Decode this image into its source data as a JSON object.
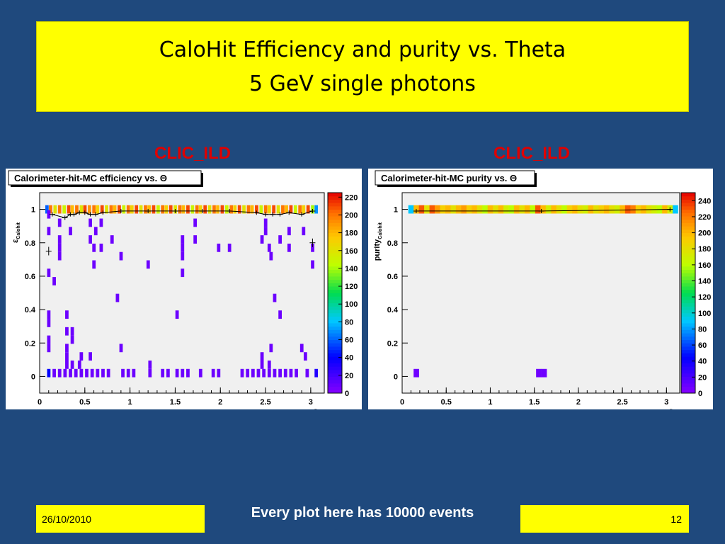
{
  "slide": {
    "title_line1": "CaloHit Efficiency and purity vs. Theta",
    "title_line2": "5 GeV single photons",
    "footer_date": "26/10/2010",
    "footer_text": "Every plot here has 10000 events",
    "page_number": "12"
  },
  "panels": {
    "left_label": "CLIC_ILD",
    "right_label": "CLIC_ILD"
  },
  "chart_data": [
    {
      "type": "heatmap",
      "title": "Calorimeter-hit-MC efficiency vs. Θ",
      "xlabel": "Θ",
      "ylabel": "εCalohit",
      "ylabel_main": "ε",
      "ylabel_sub": "Calohit",
      "xlim": [
        0,
        3.15
      ],
      "ylim": [
        -0.1,
        1.1
      ],
      "xticks": [
        "0",
        "0.5",
        "1",
        "1.5",
        "2",
        "2.5",
        "3"
      ],
      "yticks": [
        "0",
        "0.2",
        "0.4",
        "0.6",
        "0.8",
        "1"
      ],
      "colorbar_ticks": [
        "0",
        "20",
        "40",
        "60",
        "80",
        "100",
        "120",
        "140",
        "160",
        "180",
        "200",
        "220"
      ],
      "colorbar_max": 225,
      "bin_width_x": 0.035,
      "bin_height_y": 0.05,
      "cells": [
        [
          0.08,
          1,
          60
        ],
        [
          0.12,
          1,
          200
        ],
        [
          0.17,
          1,
          160
        ],
        [
          0.22,
          1,
          200
        ],
        [
          0.27,
          1,
          150
        ],
        [
          0.32,
          1,
          210
        ],
        [
          0.36,
          1,
          180
        ],
        [
          0.41,
          1,
          200
        ],
        [
          0.46,
          1,
          160
        ],
        [
          0.5,
          1,
          210
        ],
        [
          0.55,
          1,
          190
        ],
        [
          0.6,
          1,
          200
        ],
        [
          0.64,
          1,
          170
        ],
        [
          0.69,
          1,
          210
        ],
        [
          0.74,
          1,
          160
        ],
        [
          0.79,
          1,
          200
        ],
        [
          0.83,
          1,
          180
        ],
        [
          0.88,
          1,
          210
        ],
        [
          0.93,
          1,
          150
        ],
        [
          0.98,
          1,
          200
        ],
        [
          1.02,
          1,
          170
        ],
        [
          1.07,
          1,
          210
        ],
        [
          1.12,
          1,
          160
        ],
        [
          1.17,
          1,
          200
        ],
        [
          1.21,
          1,
          180
        ],
        [
          1.26,
          1,
          210
        ],
        [
          1.31,
          1,
          150
        ],
        [
          1.36,
          1,
          200
        ],
        [
          1.4,
          1,
          170
        ],
        [
          1.45,
          1,
          210
        ],
        [
          1.5,
          1,
          160
        ],
        [
          1.55,
          1,
          200
        ],
        [
          1.59,
          1,
          180
        ],
        [
          1.64,
          1,
          210
        ],
        [
          1.69,
          1,
          150
        ],
        [
          1.74,
          1,
          200
        ],
        [
          1.78,
          1,
          170
        ],
        [
          1.83,
          1,
          210
        ],
        [
          1.88,
          1,
          160
        ],
        [
          1.93,
          1,
          200
        ],
        [
          1.97,
          1,
          180
        ],
        [
          2.02,
          1,
          210
        ],
        [
          2.07,
          1,
          150
        ],
        [
          2.12,
          1,
          200
        ],
        [
          2.16,
          1,
          170
        ],
        [
          2.21,
          1,
          210
        ],
        [
          2.26,
          1,
          160
        ],
        [
          2.31,
          1,
          200
        ],
        [
          2.35,
          1,
          180
        ],
        [
          2.4,
          1,
          210
        ],
        [
          2.45,
          1,
          150
        ],
        [
          2.5,
          1,
          200
        ],
        [
          2.54,
          1,
          170
        ],
        [
          2.59,
          1,
          210
        ],
        [
          2.64,
          1,
          160
        ],
        [
          2.69,
          1,
          200
        ],
        [
          2.73,
          1,
          180
        ],
        [
          2.78,
          1,
          210
        ],
        [
          2.83,
          1,
          150
        ],
        [
          2.88,
          1,
          200
        ],
        [
          2.92,
          1,
          170
        ],
        [
          2.97,
          1,
          210
        ],
        [
          3.02,
          1,
          140
        ],
        [
          3.06,
          1,
          70
        ],
        [
          0.1,
          0.97,
          8
        ],
        [
          0.1,
          0.87,
          8
        ],
        [
          0.22,
          0.92,
          8
        ],
        [
          0.22,
          0.82,
          8
        ],
        [
          0.22,
          0.77,
          8
        ],
        [
          0.22,
          0.72,
          8
        ],
        [
          0.34,
          0.87,
          8
        ],
        [
          0.56,
          0.92,
          8
        ],
        [
          0.56,
          0.82,
          8
        ],
        [
          0.62,
          0.87,
          8
        ],
        [
          0.68,
          0.92,
          8
        ],
        [
          0.6,
          0.77,
          8
        ],
        [
          0.68,
          0.77,
          8
        ],
        [
          0.8,
          0.82,
          8
        ],
        [
          0.9,
          0.72,
          8
        ],
        [
          0.6,
          0.67,
          8
        ],
        [
          1.2,
          0.67,
          8
        ],
        [
          1.58,
          0.82,
          8
        ],
        [
          1.58,
          0.77,
          8
        ],
        [
          1.58,
          0.72,
          8
        ],
        [
          1.58,
          0.62,
          8
        ],
        [
          1.72,
          0.92,
          8
        ],
        [
          1.72,
          0.82,
          8
        ],
        [
          1.98,
          0.77,
          8
        ],
        [
          2.1,
          0.77,
          8
        ],
        [
          2.5,
          0.92,
          8
        ],
        [
          2.5,
          0.87,
          8
        ],
        [
          2.46,
          0.82,
          8
        ],
        [
          2.54,
          0.77,
          8
        ],
        [
          2.66,
          0.82,
          8
        ],
        [
          2.76,
          0.87,
          8
        ],
        [
          2.76,
          0.77,
          8
        ],
        [
          2.92,
          0.87,
          8
        ],
        [
          3.02,
          0.77,
          8
        ],
        [
          3.02,
          0.67,
          8
        ],
        [
          2.56,
          0.72,
          8
        ],
        [
          0.1,
          0.62,
          8
        ],
        [
          0.16,
          0.57,
          8
        ],
        [
          0.86,
          0.47,
          8
        ],
        [
          2.6,
          0.47,
          8
        ],
        [
          0.1,
          0.37,
          8
        ],
        [
          0.3,
          0.37,
          8
        ],
        [
          1.52,
          0.37,
          8
        ],
        [
          2.66,
          0.37,
          8
        ],
        [
          0.1,
          0.32,
          8
        ],
        [
          0.3,
          0.27,
          8
        ],
        [
          0.36,
          0.27,
          8
        ],
        [
          0.36,
          0.22,
          8
        ],
        [
          0.1,
          0.22,
          8
        ],
        [
          0.1,
          0.17,
          8
        ],
        [
          0.3,
          0.17,
          8
        ],
        [
          0.3,
          0.12,
          8
        ],
        [
          0.46,
          0.12,
          8
        ],
        [
          0.56,
          0.12,
          8
        ],
        [
          0.9,
          0.17,
          8
        ],
        [
          2.56,
          0.17,
          8
        ],
        [
          2.9,
          0.17,
          8
        ],
        [
          2.46,
          0.12,
          8
        ],
        [
          2.94,
          0.12,
          8
        ],
        [
          0.3,
          0.07,
          8
        ],
        [
          0.36,
          0.07,
          8
        ],
        [
          0.44,
          0.07,
          8
        ],
        [
          1.22,
          0.07,
          8
        ],
        [
          2.46,
          0.07,
          8
        ],
        [
          2.54,
          0.07,
          8
        ],
        [
          0.1,
          0.02,
          40
        ],
        [
          0.16,
          0.02,
          8
        ],
        [
          0.22,
          0.02,
          8
        ],
        [
          0.28,
          0.02,
          8
        ],
        [
          0.34,
          0.02,
          8
        ],
        [
          0.4,
          0.02,
          8
        ],
        [
          0.46,
          0.02,
          8
        ],
        [
          0.52,
          0.02,
          8
        ],
        [
          0.58,
          0.02,
          8
        ],
        [
          0.64,
          0.02,
          8
        ],
        [
          0.7,
          0.02,
          8
        ],
        [
          0.76,
          0.02,
          8
        ],
        [
          0.92,
          0.02,
          8
        ],
        [
          0.98,
          0.02,
          8
        ],
        [
          1.04,
          0.02,
          8
        ],
        [
          1.22,
          0.02,
          8
        ],
        [
          1.36,
          0.02,
          8
        ],
        [
          1.42,
          0.02,
          8
        ],
        [
          1.52,
          0.02,
          8
        ],
        [
          1.58,
          0.02,
          8
        ],
        [
          1.64,
          0.02,
          8
        ],
        [
          1.78,
          0.02,
          8
        ],
        [
          1.92,
          0.02,
          8
        ],
        [
          1.98,
          0.02,
          8
        ],
        [
          2.24,
          0.02,
          8
        ],
        [
          2.3,
          0.02,
          8
        ],
        [
          2.36,
          0.02,
          8
        ],
        [
          2.42,
          0.02,
          8
        ],
        [
          2.48,
          0.02,
          8
        ],
        [
          2.54,
          0.02,
          8
        ],
        [
          2.6,
          0.02,
          8
        ],
        [
          2.66,
          0.02,
          8
        ],
        [
          2.72,
          0.02,
          8
        ],
        [
          2.78,
          0.02,
          8
        ],
        [
          2.84,
          0.02,
          8
        ],
        [
          2.96,
          0.02,
          8
        ],
        [
          3.06,
          0.02,
          30
        ]
      ],
      "profile": [
        [
          0.14,
          0.97
        ],
        [
          0.28,
          0.95
        ],
        [
          0.34,
          0.97
        ],
        [
          0.38,
          0.97
        ],
        [
          0.44,
          0.98
        ],
        [
          0.5,
          0.98
        ],
        [
          0.56,
          0.97
        ],
        [
          0.62,
          0.97
        ],
        [
          0.7,
          0.98
        ],
        [
          0.9,
          0.99
        ],
        [
          1.2,
          0.99
        ],
        [
          1.5,
          0.99
        ],
        [
          1.8,
          0.99
        ],
        [
          2.1,
          0.99
        ],
        [
          2.4,
          0.98
        ],
        [
          2.5,
          0.97
        ],
        [
          2.58,
          0.97
        ],
        [
          2.66,
          0.97
        ],
        [
          2.76,
          0.98
        ],
        [
          2.9,
          0.97
        ],
        [
          3.02,
          0.99
        ]
      ],
      "profile_outliers": [
        [
          0.1,
          0.75
        ],
        [
          3.02,
          0.8
        ]
      ]
    },
    {
      "type": "heatmap",
      "title": "Calorimeter-hit-MC purity vs. Θ",
      "xlabel": "Θ",
      "ylabel": "purityCalohit",
      "ylabel_main": "purity",
      "ylabel_sub": "Calohit",
      "xlim": [
        0,
        3.15
      ],
      "ylim": [
        -0.1,
        1.1
      ],
      "xticks": [
        "0",
        "0.5",
        "1",
        "1.5",
        "2",
        "2.5",
        "3"
      ],
      "yticks": [
        "0",
        "0.2",
        "0.4",
        "0.6",
        "0.8",
        "1"
      ],
      "colorbar_ticks": [
        "0",
        "20",
        "40",
        "60",
        "80",
        "100",
        "120",
        "140",
        "160",
        "180",
        "200",
        "220",
        "240"
      ],
      "colorbar_max": 250,
      "bin_width_x": 0.06,
      "bin_height_y": 0.05,
      "cells": [
        [
          0.1,
          1,
          90
        ],
        [
          0.16,
          1,
          200
        ],
        [
          0.22,
          1,
          230
        ],
        [
          0.28,
          1,
          180
        ],
        [
          0.34,
          1,
          230
        ],
        [
          0.4,
          1,
          210
        ],
        [
          0.46,
          1,
          190
        ],
        [
          0.52,
          1,
          200
        ],
        [
          0.58,
          1,
          180
        ],
        [
          0.64,
          1,
          200
        ],
        [
          0.7,
          1,
          210
        ],
        [
          0.76,
          1,
          190
        ],
        [
          0.82,
          1,
          200
        ],
        [
          0.88,
          1,
          180
        ],
        [
          0.94,
          1,
          160
        ],
        [
          1.0,
          1,
          200
        ],
        [
          1.06,
          1,
          180
        ],
        [
          1.12,
          1,
          200
        ],
        [
          1.18,
          1,
          170
        ],
        [
          1.24,
          1,
          160
        ],
        [
          1.3,
          1,
          200
        ],
        [
          1.36,
          1,
          180
        ],
        [
          1.42,
          1,
          200
        ],
        [
          1.48,
          1,
          160
        ],
        [
          1.54,
          1,
          230
        ],
        [
          1.6,
          1,
          200
        ],
        [
          1.66,
          1,
          170
        ],
        [
          1.72,
          1,
          200
        ],
        [
          1.78,
          1,
          180
        ],
        [
          1.84,
          1,
          160
        ],
        [
          1.9,
          1,
          190
        ],
        [
          1.96,
          1,
          200
        ],
        [
          2.02,
          1,
          180
        ],
        [
          2.08,
          1,
          170
        ],
        [
          2.14,
          1,
          200
        ],
        [
          2.2,
          1,
          180
        ],
        [
          2.26,
          1,
          190
        ],
        [
          2.32,
          1,
          200
        ],
        [
          2.38,
          1,
          180
        ],
        [
          2.44,
          1,
          170
        ],
        [
          2.5,
          1,
          200
        ],
        [
          2.56,
          1,
          230
        ],
        [
          2.62,
          1,
          220
        ],
        [
          2.68,
          1,
          190
        ],
        [
          2.74,
          1,
          200
        ],
        [
          2.8,
          1,
          180
        ],
        [
          2.86,
          1,
          170
        ],
        [
          2.92,
          1,
          160
        ],
        [
          2.98,
          1,
          200
        ],
        [
          3.04,
          1,
          170
        ],
        [
          3.1,
          1,
          90
        ],
        [
          0.16,
          0.02,
          8
        ],
        [
          1.55,
          0.02,
          8
        ],
        [
          1.61,
          0.02,
          8
        ]
      ],
      "profile": [
        [
          0.16,
          0.99
        ],
        [
          1.58,
          0.99
        ],
        [
          3.04,
          1.0
        ]
      ],
      "profile_outliers": []
    }
  ]
}
